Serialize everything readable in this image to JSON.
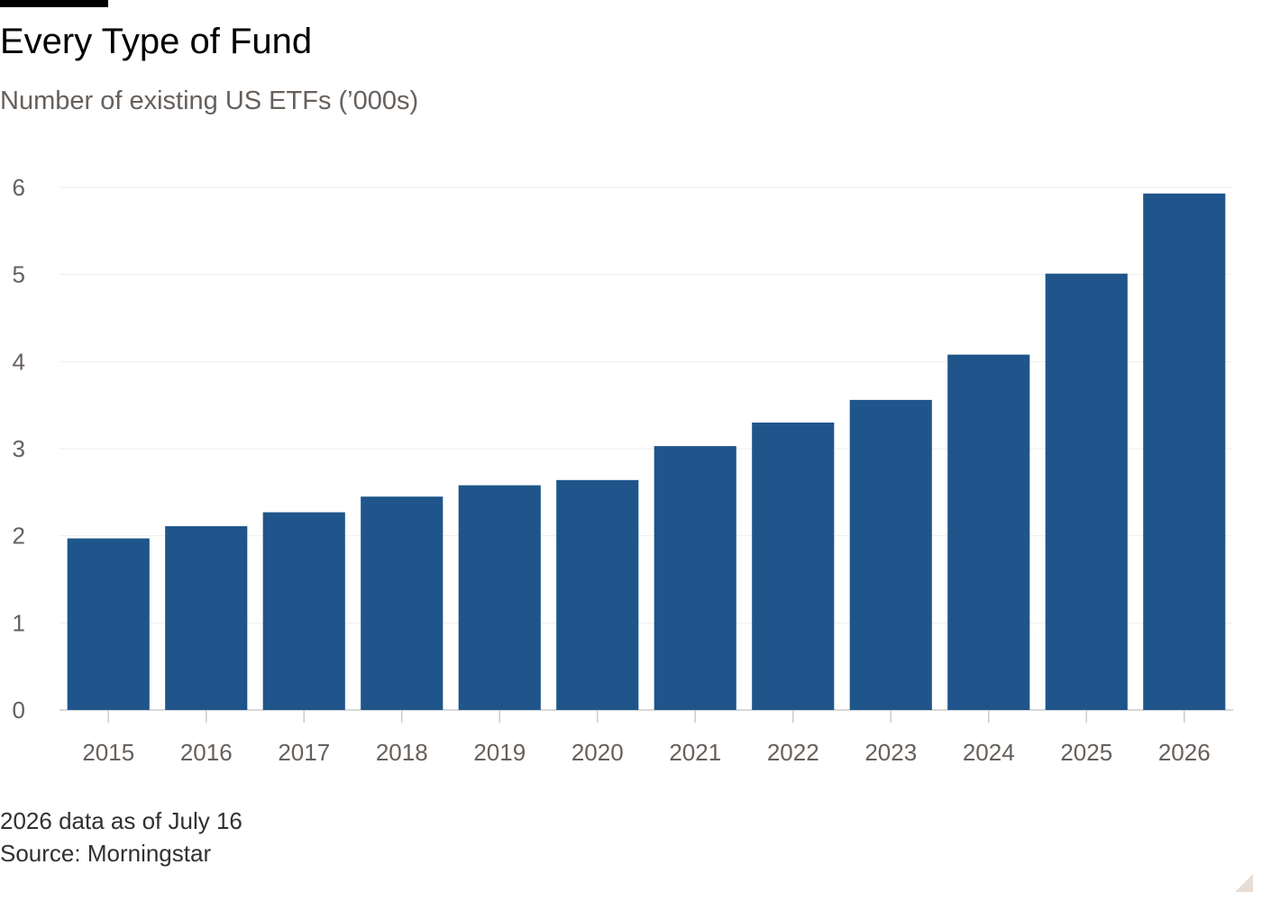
{
  "header": {
    "title": "Every Type of Fund",
    "subtitle": "Number of existing US ETFs (’000s)"
  },
  "footer": {
    "note": "2026 data as of July 16",
    "source": "Source: Morningstar"
  },
  "colors": {
    "bar": "#1f558b",
    "grid": "#eeeeee",
    "tick_text": "#66605c",
    "tick_mark": "#cccccc"
  },
  "chart_data": {
    "type": "bar",
    "categories": [
      "2015",
      "2016",
      "2017",
      "2018",
      "2019",
      "2020",
      "2021",
      "2022",
      "2023",
      "2024",
      "2025",
      "2026"
    ],
    "values": [
      1.97,
      2.11,
      2.27,
      2.45,
      2.58,
      2.64,
      3.03,
      3.3,
      3.56,
      4.08,
      5.01,
      5.93
    ],
    "title": "Every Type of Fund",
    "subtitle": "Number of existing US ETFs (’000s)",
    "xlabel": "",
    "ylabel": "",
    "ylim": [
      0,
      6
    ],
    "yticks": [
      "0",
      "1",
      "2",
      "3",
      "4",
      "5",
      "6"
    ],
    "grid": true,
    "legend": "none"
  }
}
